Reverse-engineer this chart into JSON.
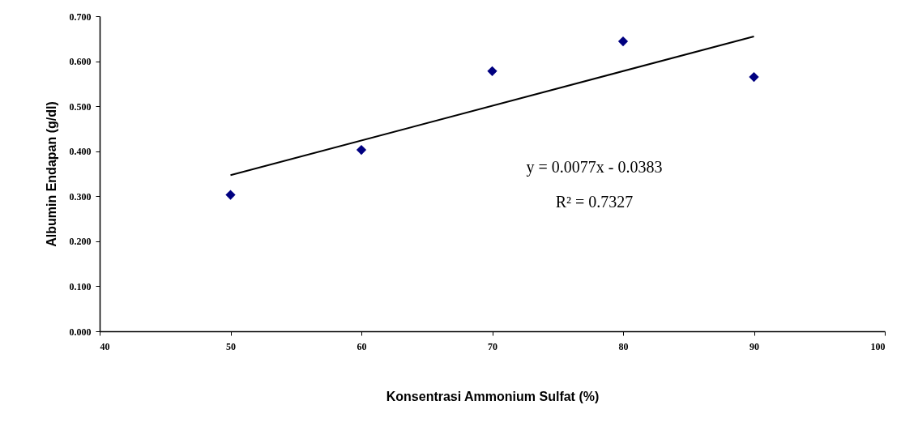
{
  "chart_data": {
    "type": "scatter",
    "xlabel": "Konsentrasi Ammonium Sulfat (%)",
    "ylabel": "Albumin Endapan (g/dl)",
    "x": [
      50,
      60,
      70,
      80,
      90
    ],
    "series": [
      {
        "color": "#000080",
        "marker": "diamond",
        "values": [
          0.303,
          0.403,
          0.578,
          0.644,
          0.565
        ]
      },
      {
        "type": "line",
        "color": "#000000",
        "x": [
          50,
          90
        ],
        "values": [
          0.347,
          0.655
        ],
        "line_style": "solid",
        "marker": "none"
      }
    ],
    "xlim": [
      40,
      100
    ],
    "xticks": [
      40,
      50,
      60,
      70,
      80,
      90,
      100
    ],
    "ylim": [
      0,
      0.7
    ],
    "yticks": [
      {
        "value": 0,
        "label": "0.000"
      },
      {
        "value": 0.1,
        "label": "0.100"
      },
      {
        "value": 0.2,
        "label": "0.200"
      },
      {
        "value": 0.3,
        "label": "0.300"
      },
      {
        "value": 0.4,
        "label": "0.400"
      },
      {
        "value": 0.5,
        "label": "0.500"
      },
      {
        "value": 0.6,
        "label": "0.600"
      },
      {
        "value": 0.7,
        "label": "0.700"
      }
    ],
    "annotations": [
      "y = 0.0077x - 0.0383",
      "R² = 0.7327"
    ],
    "grid": false
  }
}
